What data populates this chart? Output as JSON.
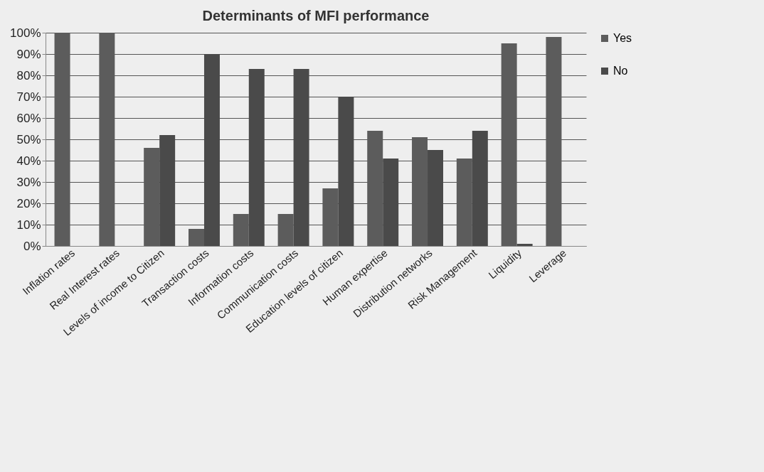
{
  "chart_data": {
    "type": "bar",
    "title": "Determinants of MFI performance",
    "categories": [
      "Inflation rates",
      "Real Interest rates",
      "Levels of income to Citizen",
      "Transaction costs",
      "Information costs",
      "Communication costs",
      "Education levels of citizen",
      "Human expertise",
      "Distribution networks",
      "Risk Management",
      "Liquidity",
      "Leverage"
    ],
    "series": [
      {
        "name": "Yes",
        "color": "#5c5c5c",
        "values": [
          100,
          100,
          46,
          8,
          15,
          15,
          27,
          54,
          51,
          41,
          95,
          98
        ]
      },
      {
        "name": "No",
        "color": "#4a4a4a",
        "values": [
          0,
          0,
          52,
          90,
          83,
          83,
          70,
          41,
          45,
          54,
          1,
          0
        ]
      }
    ],
    "ylim": [
      0,
      100
    ],
    "yticks": [
      {
        "value": 0,
        "label": "0%"
      },
      {
        "value": 10,
        "label": "10%"
      },
      {
        "value": 20,
        "label": "20%"
      },
      {
        "value": 30,
        "label": "30%"
      },
      {
        "value": 40,
        "label": "40%"
      },
      {
        "value": 50,
        "label": "50%"
      },
      {
        "value": 60,
        "label": "60%"
      },
      {
        "value": 70,
        "label": "70%"
      },
      {
        "value": 80,
        "label": "80%"
      },
      {
        "value": 90,
        "label": "90%"
      },
      {
        "value": 100,
        "label": "100%"
      }
    ],
    "grid": "y",
    "legend": "right"
  }
}
